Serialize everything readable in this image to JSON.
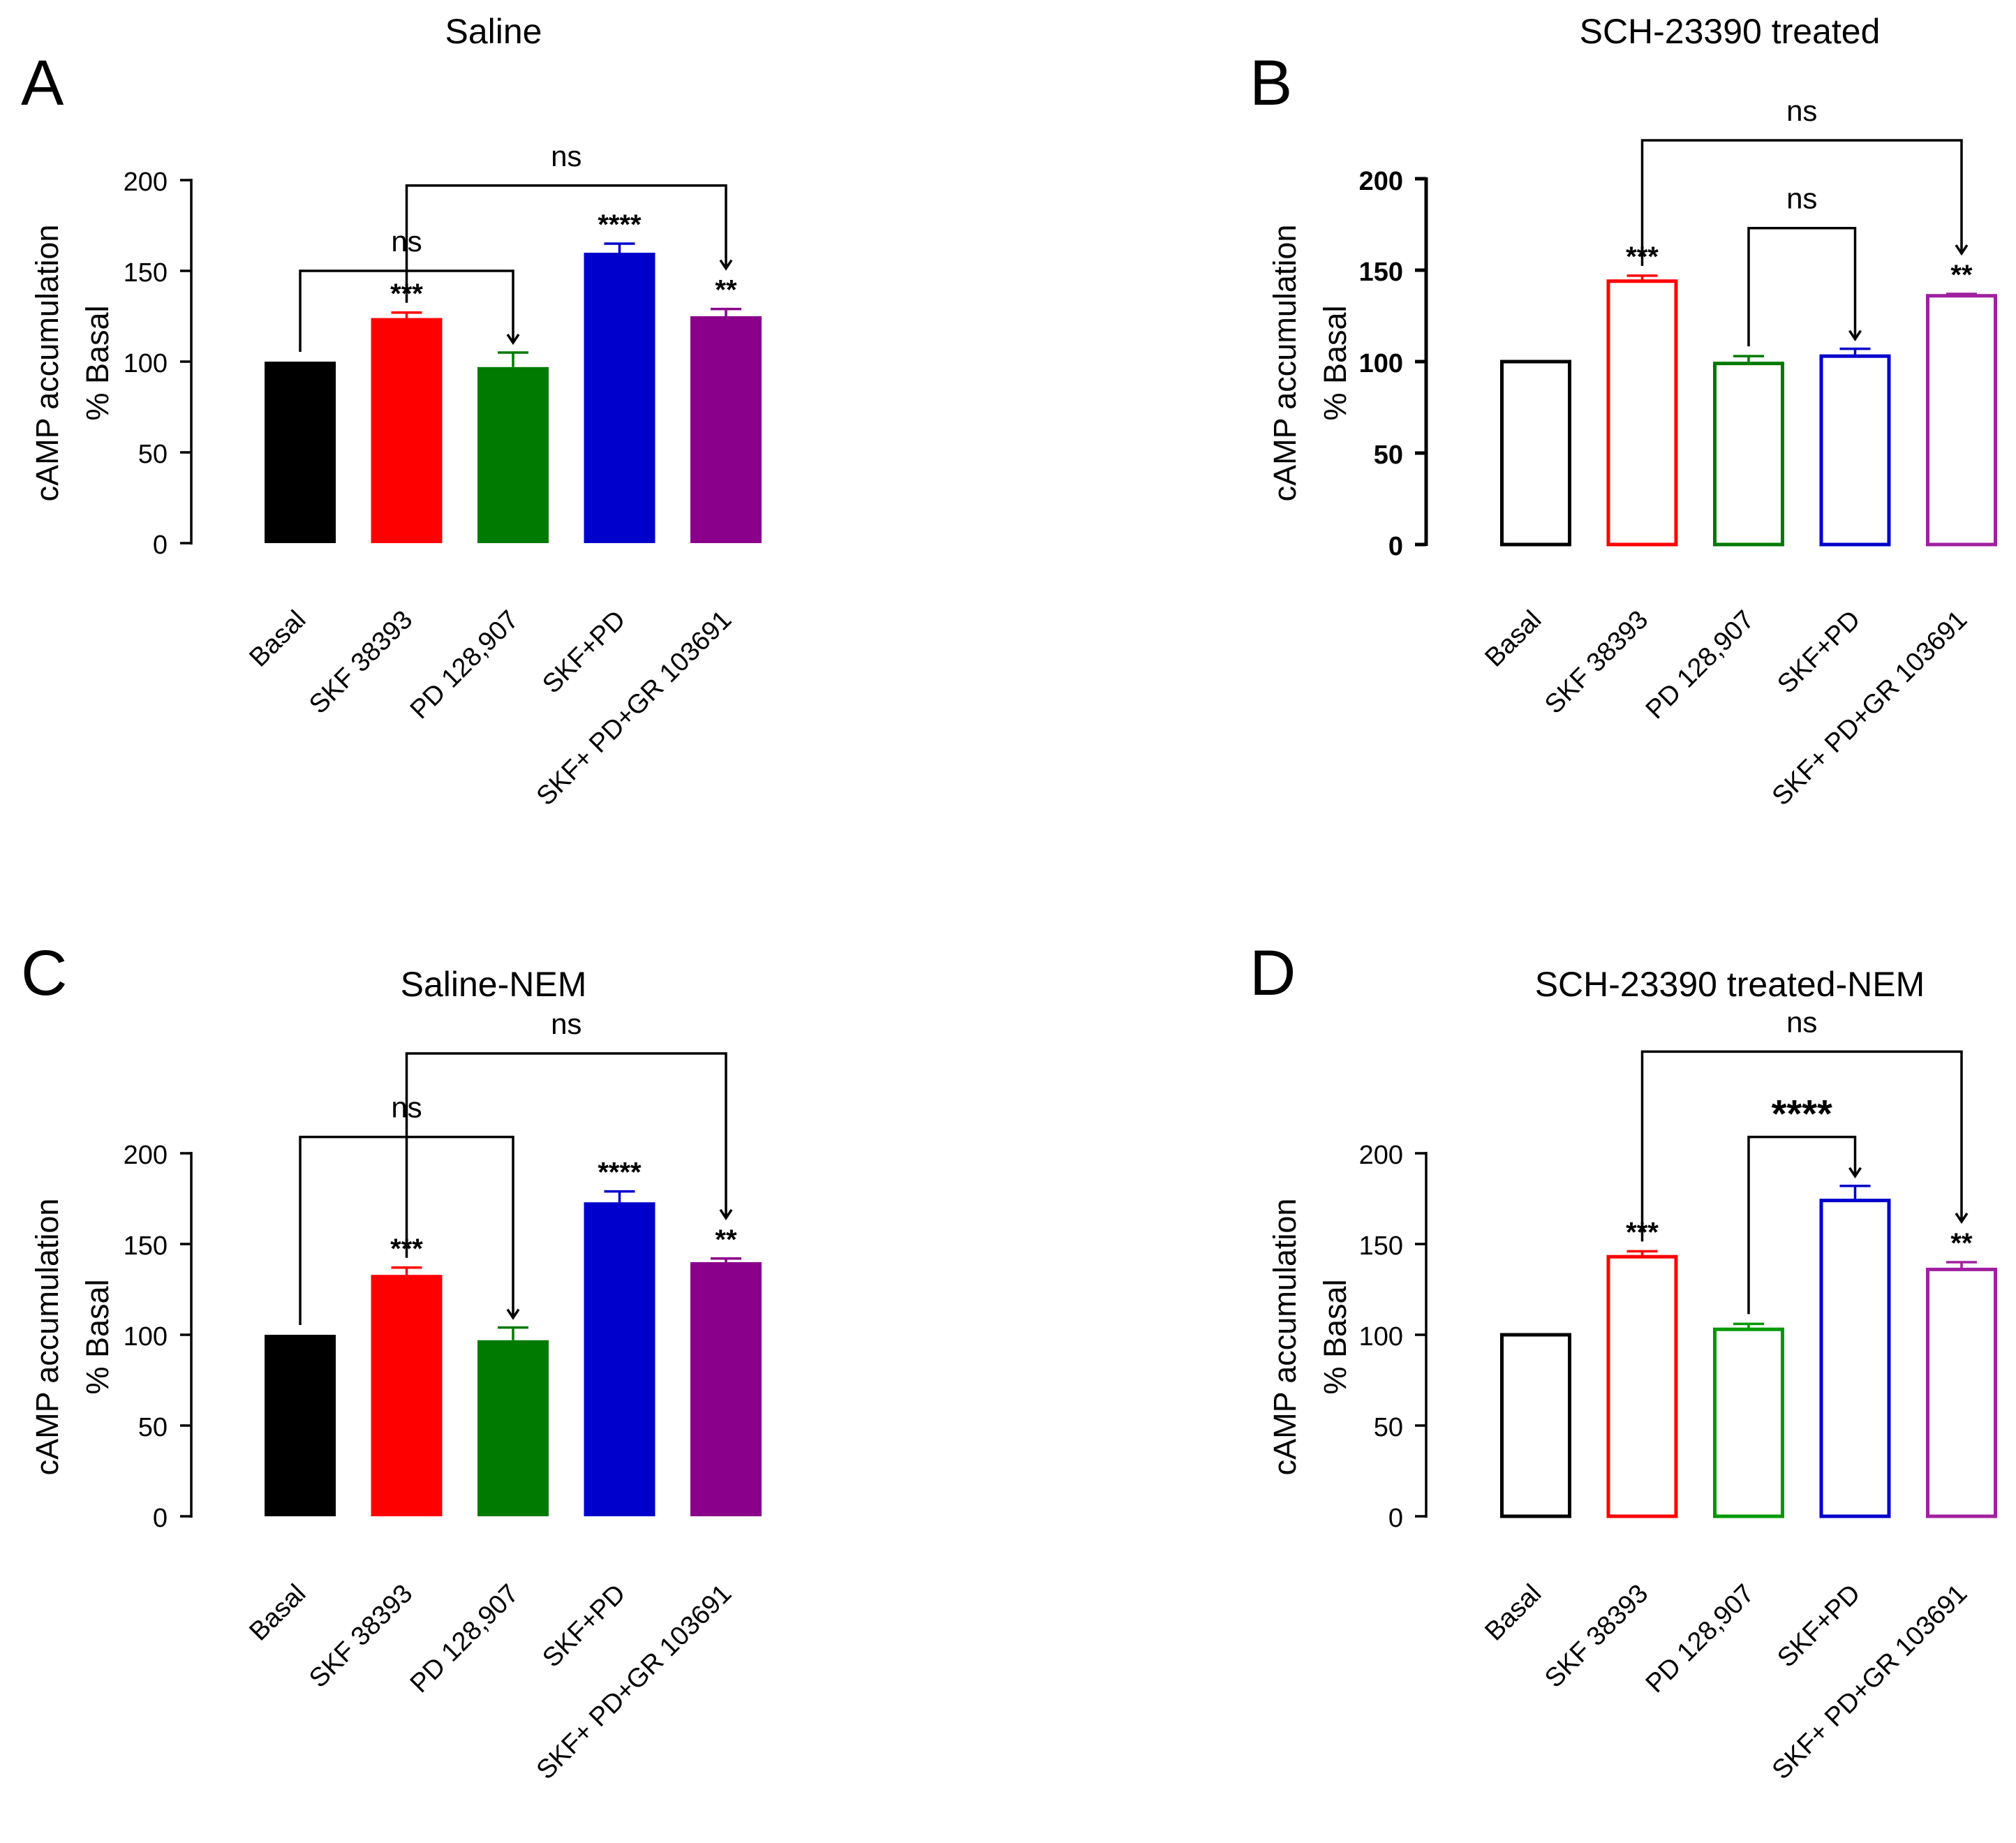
{
  "chart_data": [
    {
      "panel_letter": "A",
      "type": "bar",
      "style": "filled",
      "title": "Saline",
      "ylabel_line1": "cAMP accumulation",
      "ylabel_line2": "% Basal",
      "ylim": [
        0,
        200
      ],
      "yticks": [
        "0",
        "50",
        "100",
        "150",
        "200"
      ],
      "categories": [
        "Basal",
        "SKF 38393",
        "PD 128,907",
        "SKF+PD",
        "SKF+ PD+GR 103691"
      ],
      "colors": [
        "#000000",
        "#ff0000",
        "#007a00",
        "#0000cc",
        "#8b008b"
      ],
      "values": [
        100,
        124,
        97,
        160,
        125
      ],
      "errors": [
        0,
        3,
        8,
        5,
        4
      ],
      "significance": [
        "",
        "***",
        "",
        "****",
        "**"
      ],
      "comparisons": [
        {
          "from": 0,
          "to": 2,
          "label": "ns",
          "level": 150
        },
        {
          "from": 1,
          "to": 4,
          "label": "ns",
          "level": 197
        }
      ]
    },
    {
      "panel_letter": "B",
      "type": "bar",
      "style": "outline",
      "title": "SCH-23390 treated",
      "ylabel_line1": "cAMP accumulation",
      "ylabel_line2": "% Basal",
      "ylim": [
        0,
        200
      ],
      "yticks": [
        "0",
        "50",
        "100",
        "150",
        "200"
      ],
      "categories": [
        "Basal",
        "SKF 38393",
        "PD 128,907",
        "SKF+PD",
        "SKF+ PD+GR 103691"
      ],
      "colors": [
        "#000000",
        "#ff0000",
        "#007a00",
        "#0000cc",
        "#a020a0"
      ],
      "values": [
        100,
        144,
        99,
        103,
        136
      ],
      "errors": [
        0,
        3,
        4,
        4,
        1
      ],
      "significance": [
        "",
        "***",
        "",
        "",
        "**"
      ],
      "comparisons": [
        {
          "from": 2,
          "to": 3,
          "label": "ns",
          "level": 173
        },
        {
          "from": 1,
          "to": 4,
          "label": "ns",
          "level": 221
        }
      ]
    },
    {
      "panel_letter": "C",
      "type": "bar",
      "style": "filled",
      "title": "Saline-NEM",
      "ylabel_line1": "cAMP accumulation",
      "ylabel_line2": "% Basal",
      "ylim": [
        0,
        200
      ],
      "yticks": [
        "0",
        "50",
        "100",
        "150",
        "200"
      ],
      "categories": [
        "Basal",
        "SKF 38393",
        "PD 128,907",
        "SKF+PD",
        "SKF+ PD+GR 103691"
      ],
      "colors": [
        "#000000",
        "#ff0000",
        "#007a00",
        "#0000cc",
        "#8b008b"
      ],
      "values": [
        100,
        133,
        97,
        173,
        140
      ],
      "errors": [
        0,
        4,
        7,
        6,
        2
      ],
      "significance": [
        "",
        "***",
        "",
        "****",
        "**"
      ],
      "comparisons": [
        {
          "from": 0,
          "to": 2,
          "label": "ns",
          "level": 209
        },
        {
          "from": 1,
          "to": 4,
          "label": "ns",
          "level": 255
        }
      ]
    },
    {
      "panel_letter": "D",
      "type": "bar",
      "style": "outline",
      "title": "SCH-23390 treated-NEM",
      "ylabel_line1": "cAMP accumulation",
      "ylabel_line2": "% Basal",
      "ylim": [
        0,
        200
      ],
      "yticks": [
        "0",
        "50",
        "100",
        "150",
        "200"
      ],
      "categories": [
        "Basal",
        "SKF 38393",
        "PD 128,907",
        "SKF+PD",
        "SKF+ PD+GR 103691"
      ],
      "colors": [
        "#000000",
        "#ff0000",
        "#009900",
        "#0000cc",
        "#a020a0"
      ],
      "values": [
        100,
        143,
        103,
        174,
        136
      ],
      "errors": [
        0,
        3,
        3,
        8,
        4
      ],
      "significance": [
        "",
        "***",
        "",
        "",
        "**"
      ],
      "comparisons": [
        {
          "from": 2,
          "to": 3,
          "label": "****",
          "level": 209
        },
        {
          "from": 1,
          "to": 4,
          "label": "ns",
          "level": 256
        }
      ]
    }
  ]
}
